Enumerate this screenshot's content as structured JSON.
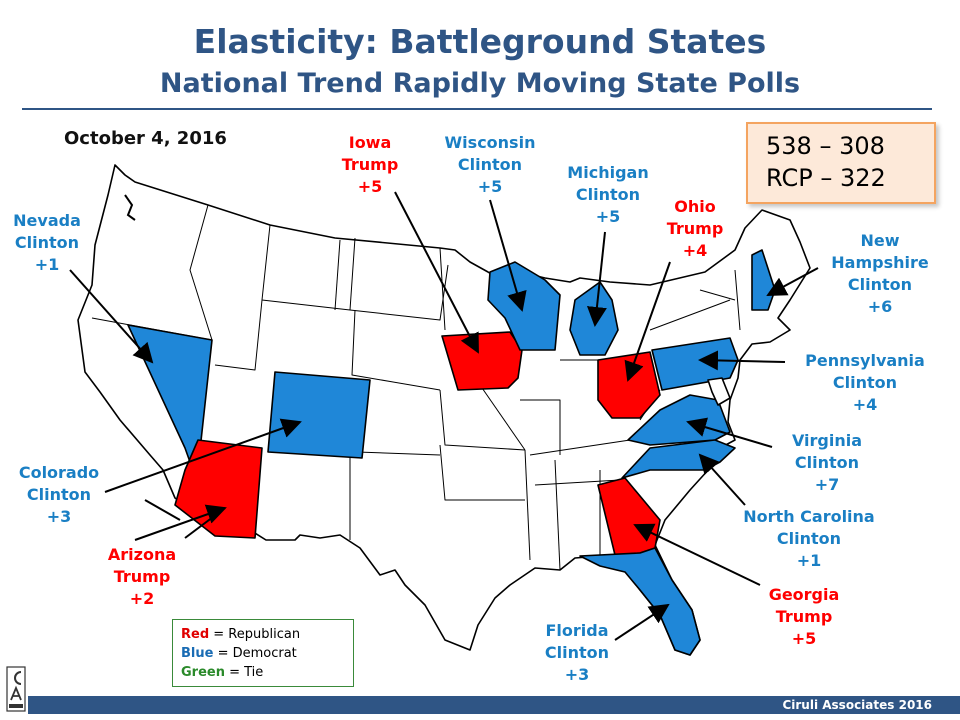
{
  "header": {
    "title": "Elasticity: Battleground States",
    "subtitle": "National Trend Rapidly Moving State Polls",
    "date": "October 4, 2016"
  },
  "scorebox": {
    "line1": "538 – 308",
    "line2": "RCP – 322"
  },
  "colors": {
    "republican": "#ff0000",
    "democrat": "#1f87d8",
    "tie": "#2a8a2a",
    "neutral_state": "#ffffff",
    "title": "#2f5585"
  },
  "states": {
    "nevada": {
      "name": "Nevada",
      "candidate": "Clinton",
      "margin": "+1",
      "party": "democrat"
    },
    "colorado": {
      "name": "Colorado",
      "candidate": "Clinton",
      "margin": "+3",
      "party": "democrat"
    },
    "arizona": {
      "name": "Arizona",
      "candidate": "Trump",
      "margin": "+2",
      "party": "republican"
    },
    "iowa": {
      "name": "Iowa",
      "candidate": "Trump",
      "margin": "+5",
      "party": "republican"
    },
    "wisconsin": {
      "name": "Wisconsin",
      "candidate": "Clinton",
      "margin": "+5",
      "party": "democrat"
    },
    "michigan": {
      "name": "Michigan",
      "candidate": "Clinton",
      "margin": "+5",
      "party": "democrat"
    },
    "ohio": {
      "name": "Ohio",
      "candidate": "Trump",
      "margin": "+4",
      "party": "republican"
    },
    "new_hampshire": {
      "name_line1": "New",
      "name_line2": "Hampshire",
      "candidate": "Clinton",
      "margin": "+6",
      "party": "democrat"
    },
    "pennsylvania": {
      "name": "Pennsylvania",
      "candidate": "Clinton",
      "margin": "+4",
      "party": "democrat"
    },
    "virginia": {
      "name": "Virginia",
      "candidate": "Clinton",
      "margin": "+7",
      "party": "democrat"
    },
    "north_carolina": {
      "name": "North Carolina",
      "candidate": "Clinton",
      "margin": "+1",
      "party": "democrat"
    },
    "georgia": {
      "name": "Georgia",
      "candidate": "Trump",
      "margin": "+5",
      "party": "republican"
    },
    "florida": {
      "name": "Florida",
      "candidate": "Clinton",
      "margin": "+3",
      "party": "democrat"
    }
  },
  "legend": {
    "red_word": "Red",
    "red_desc": " = Republican",
    "blue_word": "Blue",
    "blue_desc": " = Democrat",
    "green_word": "Green",
    "green_desc": " = Tie"
  },
  "footer": {
    "credit": "Ciruli Associates 2016"
  }
}
